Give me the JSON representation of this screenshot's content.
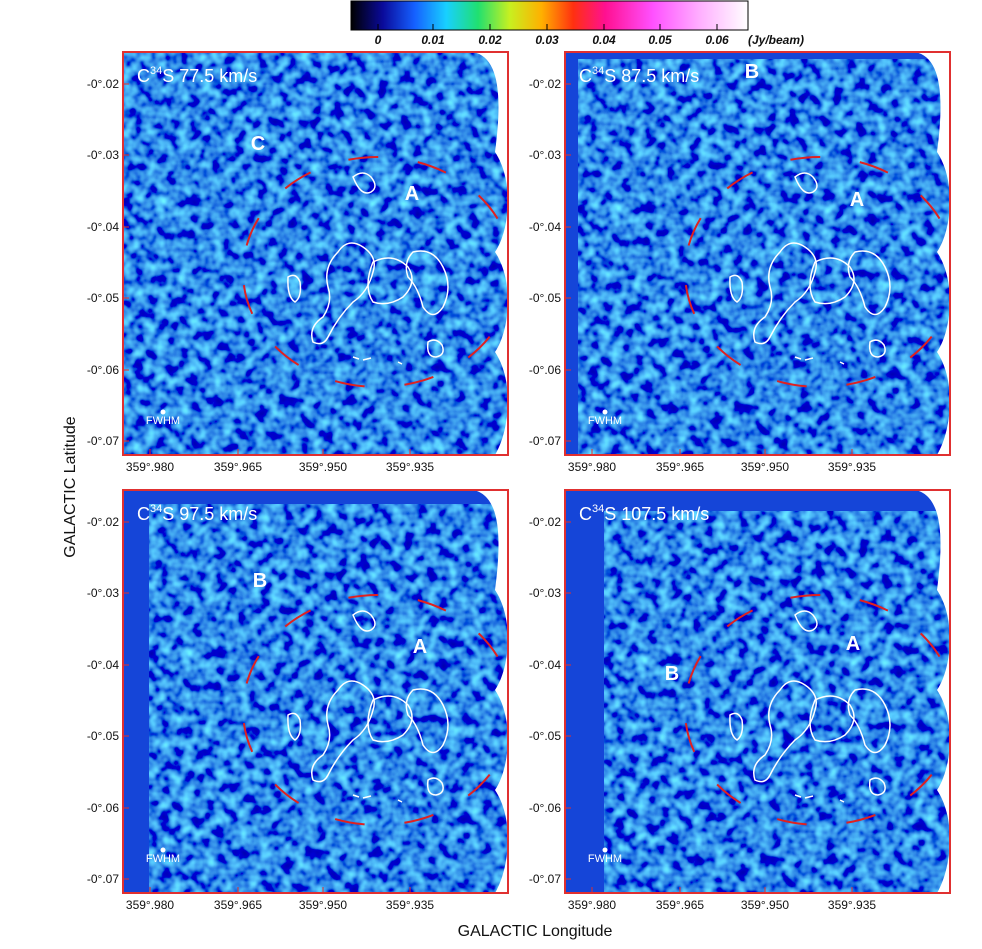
{
  "colorbar": {
    "ticks": [
      "0",
      "0.01",
      "0.02",
      "0.03",
      "0.04",
      "0.05",
      "0.06"
    ],
    "unit": "(Jy/beam)"
  },
  "x_tick_labels": [
    "359°.980",
    "359°.965",
    "359°.950",
    "359°.935"
  ],
  "y_tick_labels": [
    "-0°.02",
    "-0°.03",
    "-0°.04",
    "-0°.05",
    "-0°.06",
    "-0°.07"
  ],
  "beam_label": "FWHM",
  "x_axis_label": "GALACTIC Longitude",
  "y_axis_label": "GALACTIC Latitude",
  "panels": [
    {
      "title": {
        "pre": "C",
        "sup": "34",
        "post": "S 77.5 km/s"
      },
      "labels": [
        "C",
        "A"
      ]
    },
    {
      "title": {
        "pre": "C",
        "sup": "34",
        "post": "S 87.5 km/s"
      },
      "labels": [
        "B",
        "A"
      ]
    },
    {
      "title": {
        "pre": "C",
        "sup": "34",
        "post": "S 97.5 km/s"
      },
      "labels": [
        "B",
        "A"
      ]
    },
    {
      "title": {
        "pre": "C",
        "sup": "34",
        "post": "S 107.5 km/s"
      },
      "labels": [
        "A",
        "B"
      ]
    }
  ]
}
